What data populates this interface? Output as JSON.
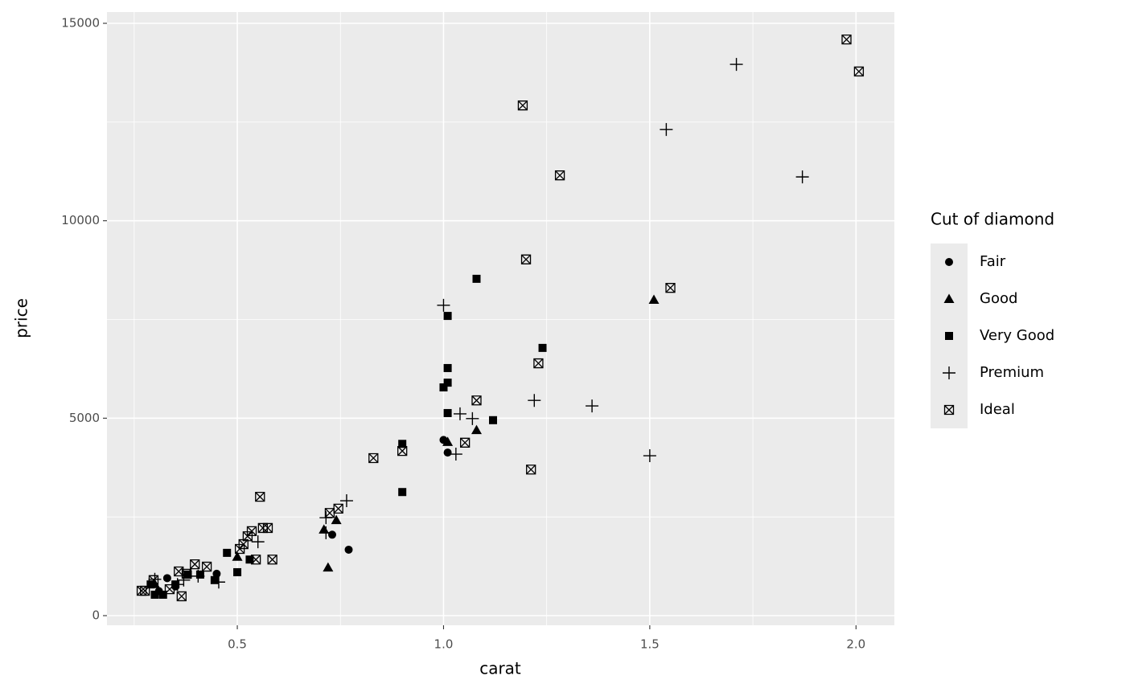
{
  "chart_data": {
    "type": "scatter",
    "x_label": "carat",
    "y_label": "price",
    "legend_title": "Cut of diamond",
    "legend_position": "right",
    "xlim": [
      0.184,
      2.093
    ],
    "ylim": [
      -244,
      15285
    ],
    "xticks": [
      0.5,
      {
        "value": 1,
        "label": "1.0"
      },
      1.5,
      {
        "value": 2,
        "label": "2.0"
      }
    ],
    "yticks": [
      0,
      5000,
      10000,
      15000
    ],
    "x_minor_breaks": [
      0.25,
      0.75,
      1.25,
      1.75
    ],
    "y_minor_breaks": [
      2500,
      7500,
      12500
    ],
    "grid": true,
    "series": [
      {
        "name": "Fair",
        "color": "#000000",
        "shape": "circle",
        "x": [
          1.0,
          1.01,
          0.73,
          0.77,
          0.45,
          0.33,
          0.31,
          0.35
        ],
        "values": [
          4450,
          4130,
          2050,
          1670,
          1060,
          950,
          620,
          740
        ]
      },
      {
        "name": "Good",
        "color": "#000000",
        "shape": "triangle",
        "x": [
          1.51,
          1.08,
          1.01,
          0.74,
          0.71,
          0.5,
          0.72,
          0.3
        ],
        "values": [
          8000,
          4700,
          4400,
          2420,
          2180,
          1490,
          1220,
          800
        ]
      },
      {
        "name": "Very Good",
        "color": "#000000",
        "shape": "square",
        "x": [
          1.08,
          1.01,
          1.01,
          1.24,
          1.01,
          1.0,
          1.01,
          1.12,
          0.9,
          0.9,
          0.475,
          0.5,
          0.53,
          0.445,
          0.38,
          0.41,
          0.35,
          0.3,
          0.29,
          0.32
        ],
        "values": [
          8530,
          7590,
          6270,
          6780,
          5900,
          5780,
          5130,
          4950,
          4350,
          3130,
          1590,
          1100,
          1420,
          900,
          1040,
          1040,
          790,
          530,
          790,
          530
        ]
      },
      {
        "name": "Premium",
        "color": "#000000",
        "shape": "plus",
        "x": [
          1.71,
          1.54,
          1.87,
          1.0,
          1.22,
          1.36,
          1.04,
          1.07,
          1.03,
          1.5,
          0.765,
          0.715,
          0.715,
          0.55,
          0.455,
          0.405,
          0.3,
          0.37,
          0.355
        ],
        "values": [
          13960,
          12310,
          11110,
          7860,
          5450,
          5310,
          5110,
          4990,
          4090,
          4050,
          2910,
          2480,
          2100,
          1870,
          850,
          1000,
          920,
          900,
          790
        ]
      },
      {
        "name": "Ideal",
        "color": "#000000",
        "shape": "boxed-x",
        "x": [
          1.977,
          2.007,
          1.192,
          1.282,
          1.2,
          1.55,
          1.23,
          1.08,
          1.052,
          0.9,
          0.83,
          1.212,
          0.555,
          0.745,
          0.724,
          0.574,
          0.562,
          0.535,
          0.525,
          0.515,
          0.506,
          0.545,
          0.585,
          0.397,
          0.426,
          0.358,
          0.377,
          0.297,
          0.268,
          0.276,
          0.365,
          0.336
        ],
        "values": [
          14590,
          13780,
          12920,
          11150,
          9020,
          8300,
          6390,
          5450,
          4380,
          4170,
          3990,
          3700,
          3010,
          2710,
          2600,
          2220,
          2220,
          2140,
          2010,
          1810,
          1690,
          1420,
          1420,
          1300,
          1240,
          1120,
          1060,
          900,
          630,
          630,
          490,
          670
        ]
      }
    ]
  }
}
